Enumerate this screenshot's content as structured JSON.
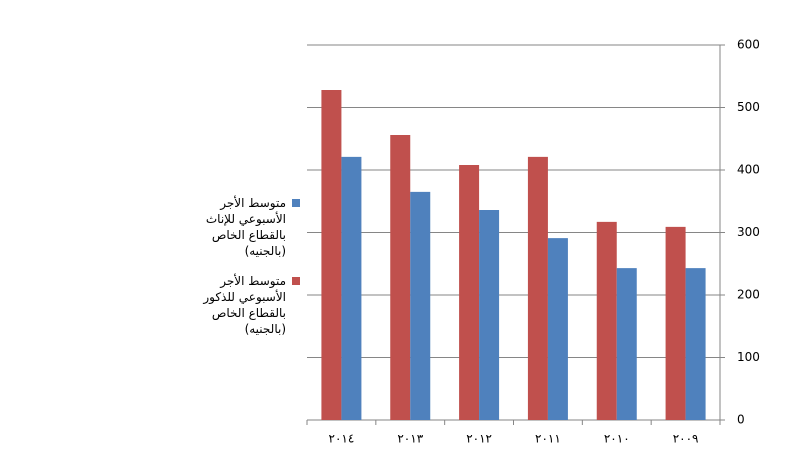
{
  "chart_data": {
    "type": "bar",
    "categories": [
      "٢٠١٤",
      "٢٠١٣",
      "٢٠١٢",
      "٢٠١١",
      "٢٠١٠",
      "٢٠٠٩"
    ],
    "series": [
      {
        "name": "متوسط الأجر الأسبوعي للإناث بالقطاع الخاص (بالجنيه)",
        "color": "#4f81bd",
        "values": [
          421,
          365,
          336,
          291,
          243,
          243
        ]
      },
      {
        "name": "متوسط الأجر الأسبوعي للذكور بالقطاع الخاص (بالجنيه)",
        "color": "#c0504d",
        "values": [
          528,
          456,
          408,
          421,
          317,
          309
        ]
      }
    ],
    "ylim": [
      0,
      600
    ],
    "yticks": [
      0,
      100,
      200,
      300,
      400,
      500,
      600
    ],
    "grid": true,
    "legend": "left"
  }
}
